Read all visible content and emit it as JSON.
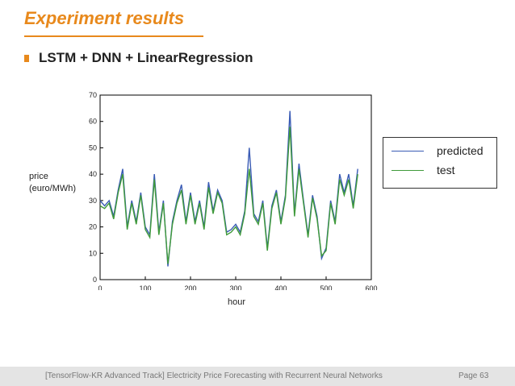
{
  "slide": {
    "title": "Experiment results",
    "bullet": "LSTM + DNN + LinearRegression",
    "footer_text": "[TensorFlow-KR Advanced Track] Electricity Price Forecasting with Recurrent Neural Networks",
    "page": "Page 63"
  },
  "colors": {
    "accent": "#e8891c",
    "predicted": "#3a5bb5",
    "test": "#3f9a3a"
  },
  "chart_data": {
    "type": "line",
    "xlabel": "hour",
    "ylabel": "price\n(euro/MWh)",
    "xlim": [
      0,
      600
    ],
    "ylim": [
      0,
      70
    ],
    "xticks": [
      0,
      100,
      200,
      300,
      400,
      500,
      600
    ],
    "yticks": [
      0,
      10,
      20,
      30,
      40,
      50,
      60,
      70
    ],
    "legend": {
      "position": "right",
      "entries": [
        "predicted",
        "test"
      ]
    },
    "grid": false,
    "x": [
      0,
      10,
      20,
      30,
      40,
      50,
      60,
      70,
      80,
      90,
      100,
      110,
      120,
      130,
      140,
      150,
      160,
      170,
      180,
      190,
      200,
      210,
      220,
      230,
      240,
      250,
      260,
      270,
      280,
      290,
      300,
      310,
      320,
      330,
      340,
      350,
      360,
      370,
      380,
      390,
      400,
      410,
      420,
      430,
      440,
      450,
      460,
      470,
      480,
      490,
      500,
      510,
      520,
      530,
      540,
      550,
      560,
      570
    ],
    "series": [
      {
        "name": "predicted",
        "values": [
          30,
          28,
          30,
          24,
          34,
          42,
          20,
          30,
          22,
          33,
          20,
          17,
          40,
          18,
          30,
          5,
          22,
          30,
          36,
          22,
          33,
          22,
          30,
          20,
          37,
          26,
          34,
          30,
          18,
          19,
          21,
          18,
          26,
          50,
          25,
          22,
          30,
          12,
          28,
          34,
          22,
          32,
          64,
          25,
          44,
          30,
          17,
          32,
          24,
          8,
          12,
          30,
          22,
          40,
          33,
          40,
          28,
          42
        ]
      },
      {
        "name": "test",
        "values": [
          28,
          27,
          29,
          23,
          33,
          40,
          19,
          29,
          21,
          32,
          19,
          16,
          38,
          17,
          29,
          6,
          21,
          29,
          34,
          21,
          32,
          21,
          29,
          19,
          35,
          25,
          33,
          29,
          17,
          18,
          20,
          17,
          25,
          42,
          24,
          21,
          29,
          11,
          27,
          33,
          21,
          31,
          58,
          24,
          42,
          29,
          16,
          31,
          23,
          9,
          11,
          29,
          21,
          38,
          32,
          38,
          27,
          40
        ]
      }
    ]
  }
}
